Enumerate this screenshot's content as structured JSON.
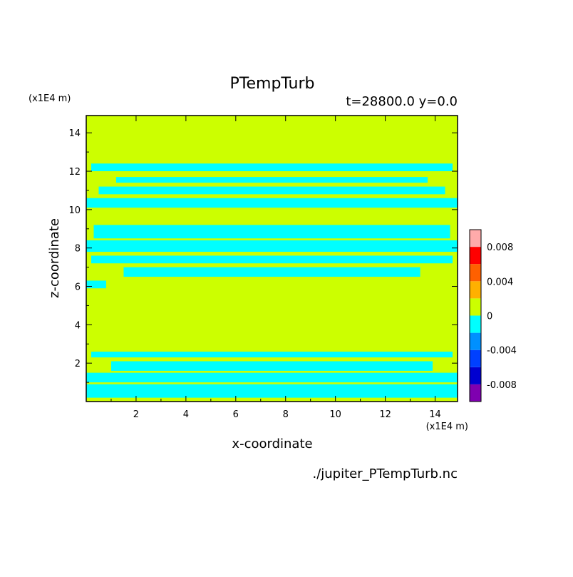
{
  "title": "PTempTurb",
  "subtitle": "t=28800.0 y=0.0",
  "source": "./jupiter_PTempTurb.nc",
  "chart_data": {
    "type": "heatmap",
    "title": "PTempTurb",
    "xlabel": "x-coordinate",
    "ylabel": "z-coordinate",
    "x_unit": "(x1E4 m)",
    "y_unit": "(x1E4 m)",
    "xlim": [
      0.0,
      14.9
    ],
    "ylim": [
      0.0,
      14.9
    ],
    "x_ticks": [
      2,
      4,
      6,
      8,
      10,
      12,
      14
    ],
    "y_ticks": [
      2,
      4,
      6,
      8,
      10,
      12,
      14
    ],
    "background_level": "0 to 0.002",
    "negative_level": "-0.002 to 0",
    "background_color": "#ccff00",
    "negative_color": "#00ffff",
    "negative_bands": [
      {
        "z": [
          0.2,
          0.9
        ],
        "x": [
          0.0,
          14.9
        ]
      },
      {
        "z": [
          1.0,
          1.5
        ],
        "x": [
          0.0,
          14.9
        ]
      },
      {
        "z": [
          1.6,
          2.1
        ],
        "x": [
          1.0,
          13.9
        ]
      },
      {
        "z": [
          2.3,
          2.6
        ],
        "x": [
          0.2,
          14.7
        ]
      },
      {
        "z": [
          5.9,
          6.3
        ],
        "x": [
          0.0,
          0.8
        ]
      },
      {
        "z": [
          6.5,
          7.0
        ],
        "x": [
          1.5,
          13.4
        ]
      },
      {
        "z": [
          7.2,
          7.6
        ],
        "x": [
          0.2,
          14.7
        ]
      },
      {
        "z": [
          7.8,
          8.4
        ],
        "x": [
          0.0,
          14.9
        ]
      },
      {
        "z": [
          8.5,
          9.2
        ],
        "x": [
          0.3,
          14.6
        ]
      },
      {
        "z": [
          10.1,
          10.6
        ],
        "x": [
          0.0,
          14.9
        ]
      },
      {
        "z": [
          10.8,
          11.2
        ],
        "x": [
          0.5,
          14.4
        ]
      },
      {
        "z": [
          11.4,
          11.7
        ],
        "x": [
          1.2,
          13.7
        ]
      },
      {
        "z": [
          12.0,
          12.4
        ],
        "x": [
          0.2,
          14.7
        ]
      }
    ],
    "colorbar": {
      "colors": [
        "#7f00b0",
        "#0000d0",
        "#0040ff",
        "#0090ff",
        "#00ffff",
        "#ccff00",
        "#ffb000",
        "#ff6000",
        "#ff0000",
        "#ffaaaa"
      ],
      "tick_labels": [
        "-0.008",
        "-0.004",
        "0",
        "0.004",
        "0.008"
      ],
      "tick_values": [
        -0.008,
        -0.004,
        0,
        0.004,
        0.008
      ],
      "range": [
        -0.01,
        0.01
      ]
    }
  }
}
